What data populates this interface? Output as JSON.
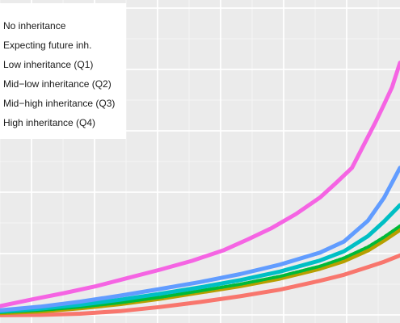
{
  "chart_data": {
    "type": "line",
    "title": "",
    "xlabel": "",
    "ylabel": "",
    "grid": true,
    "legend_placement": "top-left",
    "xlim": [
      0,
      100
    ],
    "ylim": [
      0,
      100
    ],
    "series": [
      {
        "name": "No inheritance",
        "color": "#F8766D",
        "x": [
          0,
          10,
          20,
          30,
          40,
          50,
          60,
          70,
          80,
          86,
          92,
          96,
          100
        ],
        "y": [
          0.4,
          0.5,
          0.9,
          1.7,
          3.0,
          4.6,
          6.4,
          8.5,
          11.3,
          13.2,
          15.6,
          17.3,
          19.3
        ]
      },
      {
        "name": "Expecting future inh.",
        "color": "#B79F00",
        "x": [
          0,
          10,
          20,
          30,
          40,
          50,
          60,
          70,
          80,
          86,
          92,
          96,
          100
        ],
        "y": [
          1.1,
          1.6,
          2.6,
          3.9,
          5.6,
          7.6,
          9.6,
          12.0,
          15.1,
          17.5,
          20.9,
          24.0,
          27.4
        ]
      },
      {
        "name": "Low inheritance (Q1)",
        "color": "#00BA38",
        "x": [
          0,
          10,
          20,
          30,
          40,
          50,
          60,
          70,
          80,
          86,
          92,
          96,
          100
        ],
        "y": [
          1.3,
          2.0,
          3.0,
          4.4,
          6.1,
          8.1,
          10.2,
          12.7,
          15.9,
          18.5,
          22.0,
          25.1,
          28.6
        ]
      },
      {
        "name": "Mid−low inheritance (Q2)",
        "color": "#00BFC4",
        "x": [
          0,
          10,
          20,
          30,
          40,
          50,
          60,
          70,
          80,
          86,
          92,
          96,
          100
        ],
        "y": [
          1.6,
          2.5,
          3.7,
          5.3,
          7.2,
          9.2,
          11.5,
          14.2,
          17.7,
          20.6,
          25.4,
          30.0,
          35.2
        ]
      },
      {
        "name": "Mid−high inheritance (Q3)",
        "color": "#619CFF",
        "x": [
          0,
          10,
          20,
          30,
          40,
          50,
          60,
          70,
          80,
          86,
          92,
          96,
          100
        ],
        "y": [
          2.0,
          3.1,
          4.7,
          6.6,
          8.7,
          10.9,
          13.4,
          16.4,
          20.2,
          23.7,
          30.3,
          37.5,
          47.0
        ]
      },
      {
        "name": "High inheritance (Q4)",
        "color": "#F564E3",
        "x": [
          0,
          8,
          16,
          24,
          32,
          40,
          48,
          56,
          62,
          68,
          74,
          80,
          84,
          88,
          92,
          94,
          96,
          98,
          100
        ],
        "y": [
          3.3,
          5.4,
          7.4,
          9.6,
          12.2,
          14.8,
          17.6,
          21.0,
          24.4,
          28.0,
          32.4,
          37.6,
          42.2,
          47.0,
          56.8,
          61.7,
          67.0,
          72.4,
          80.2
        ]
      }
    ]
  }
}
